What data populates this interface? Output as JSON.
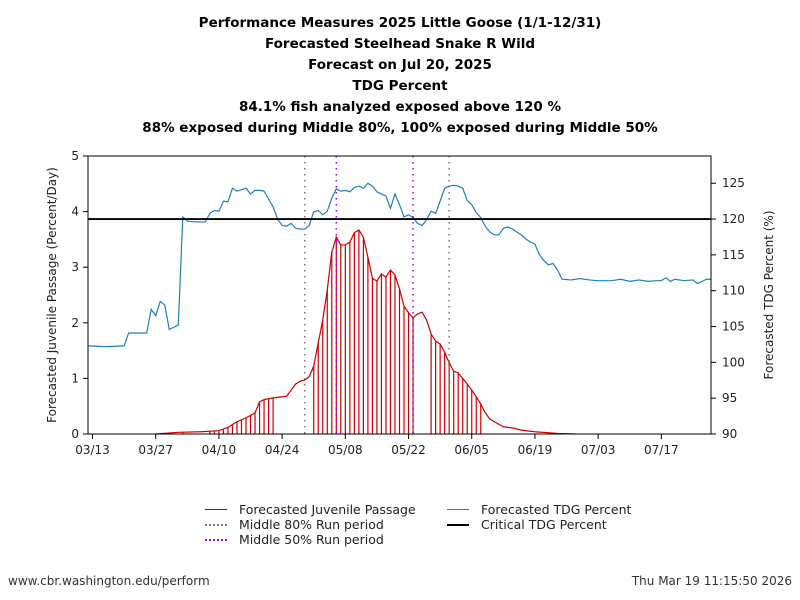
{
  "titles": [
    "Performance Measures 2025 Little Goose (1/1-12/31)",
    "Forecasted Steelhead Snake R Wild",
    "Forecast on Jul 20, 2025",
    "TDG Percent",
    "84.1% fish analyzed exposed above 120 %",
    "88% exposed during Middle 80%, 100% exposed during Middle 50%"
  ],
  "footer": {
    "left": "www.cbr.washington.edu/perform",
    "right": "Thu Mar 19 11:15:50 2026"
  },
  "legend": [
    {
      "label": "Forecasted Juvenile Passage",
      "color": "#cc0000",
      "style": "solid"
    },
    {
      "label": "Middle 80% Run period",
      "color": "#777777",
      "style": "dotted"
    },
    {
      "label": "Middle 50% Run period",
      "color": "#9900ff",
      "style": "dotted"
    },
    {
      "label": "Forecasted TDG Percent",
      "color": "#1f7fb8",
      "style": "solid"
    },
    {
      "label": "Critical TDG Percent",
      "color": "#000000",
      "style": "solid"
    }
  ],
  "chart_data": {
    "type": "line",
    "xlabel": "",
    "ylabel": "Forecasted Juvenile Passage (Percent/Day)",
    "y2label": "Forecasted TDG Percent (%)",
    "xlim": [
      "2025-03-12",
      "2025-07-28"
    ],
    "ylim": [
      0,
      5
    ],
    "y2lim": [
      90,
      128.8
    ],
    "xticks": [
      "03/13",
      "03/27",
      "04/10",
      "04/24",
      "05/08",
      "05/22",
      "06/05",
      "06/19",
      "07/03",
      "07/17"
    ],
    "yticks": [
      "0",
      "1",
      "2",
      "3",
      "4",
      "5"
    ],
    "y2ticks": [
      "90",
      "95",
      "100",
      "105",
      "110",
      "115",
      "120",
      "125"
    ],
    "grid": false,
    "legend_placement": "bottom",
    "critical_tdg": 120,
    "middle80": [
      "2025-04-29",
      "2025-05-31"
    ],
    "middle50": [
      "2025-05-06",
      "2025-05-23"
    ],
    "passage": [
      [
        "2025-03-27",
        0
      ],
      [
        "2025-04-01",
        0.03
      ],
      [
        "2025-04-06",
        0.04
      ],
      [
        "2025-04-10",
        0.06
      ],
      [
        "2025-04-12",
        0.12
      ],
      [
        "2025-04-14",
        0.22
      ],
      [
        "2025-04-16",
        0.29
      ],
      [
        "2025-04-18",
        0.38
      ],
      [
        "2025-04-19",
        0.58
      ],
      [
        "2025-04-20",
        0.62
      ],
      [
        "2025-04-22",
        0.65
      ],
      [
        "2025-04-24",
        0.67
      ],
      [
        "2025-04-25",
        0.68
      ],
      [
        "2025-04-26",
        0.79
      ],
      [
        "2025-04-27",
        0.9
      ],
      [
        "2025-04-28",
        0.95
      ],
      [
        "2025-04-29",
        0.97
      ],
      [
        "2025-04-30",
        1.03
      ],
      [
        "2025-05-01",
        1.22
      ],
      [
        "2025-05-02",
        1.64
      ],
      [
        "2025-05-03",
        2.05
      ],
      [
        "2025-05-04",
        2.59
      ],
      [
        "2025-05-05",
        3.27
      ],
      [
        "2025-05-06",
        3.54
      ],
      [
        "2025-05-07",
        3.4
      ],
      [
        "2025-05-08",
        3.4
      ],
      [
        "2025-05-09",
        3.45
      ],
      [
        "2025-05-10",
        3.62
      ],
      [
        "2025-05-11",
        3.67
      ],
      [
        "2025-05-12",
        3.54
      ],
      [
        "2025-05-13",
        3.18
      ],
      [
        "2025-05-14",
        2.8
      ],
      [
        "2025-05-15",
        2.75
      ],
      [
        "2025-05-16",
        2.88
      ],
      [
        "2025-05-17",
        2.82
      ],
      [
        "2025-05-18",
        2.95
      ],
      [
        "2025-05-19",
        2.86
      ],
      [
        "2025-05-20",
        2.61
      ],
      [
        "2025-05-21",
        2.3
      ],
      [
        "2025-05-22",
        2.18
      ],
      [
        "2025-05-23",
        2.09
      ],
      [
        "2025-05-24",
        2.16
      ],
      [
        "2025-05-25",
        2.19
      ],
      [
        "2025-05-26",
        2.05
      ],
      [
        "2025-05-27",
        1.8
      ],
      [
        "2025-05-28",
        1.67
      ],
      [
        "2025-05-29",
        1.62
      ],
      [
        "2025-05-30",
        1.47
      ],
      [
        "2025-05-31",
        1.28
      ],
      [
        "2025-06-01",
        1.13
      ],
      [
        "2025-06-02",
        1.1
      ],
      [
        "2025-06-03",
        1.0
      ],
      [
        "2025-06-04",
        0.9
      ],
      [
        "2025-06-05",
        0.79
      ],
      [
        "2025-06-06",
        0.67
      ],
      [
        "2025-06-07",
        0.54
      ],
      [
        "2025-06-08",
        0.38
      ],
      [
        "2025-06-09",
        0.27
      ],
      [
        "2025-06-10",
        0.22
      ],
      [
        "2025-06-12",
        0.13
      ],
      [
        "2025-06-14",
        0.11
      ],
      [
        "2025-06-16",
        0.07
      ],
      [
        "2025-06-19",
        0.04
      ],
      [
        "2025-06-24",
        0.01
      ],
      [
        "2025-06-28",
        0
      ]
    ],
    "tdg": [
      [
        "2025-03-12",
        102.3
      ],
      [
        "2025-03-16",
        102.2
      ],
      [
        "2025-03-20",
        102.3
      ],
      [
        "2025-03-21",
        104.1
      ],
      [
        "2025-03-25",
        104.1
      ],
      [
        "2025-03-26",
        107.4
      ],
      [
        "2025-03-27",
        106.5
      ],
      [
        "2025-03-28",
        108.5
      ],
      [
        "2025-03-29",
        108.0
      ],
      [
        "2025-03-30",
        104.6
      ],
      [
        "2025-03-31",
        104.9
      ],
      [
        "2025-04-01",
        105.2
      ],
      [
        "2025-04-02",
        120.3
      ],
      [
        "2025-04-03",
        119.7
      ],
      [
        "2025-04-05",
        119.6
      ],
      [
        "2025-04-07",
        119.6
      ],
      [
        "2025-04-08",
        120.8
      ],
      [
        "2025-04-09",
        121.2
      ],
      [
        "2025-04-10",
        121.1
      ],
      [
        "2025-04-11",
        122.5
      ],
      [
        "2025-04-12",
        122.4
      ],
      [
        "2025-04-13",
        124.3
      ],
      [
        "2025-04-14",
        123.9
      ],
      [
        "2025-04-15",
        124.1
      ],
      [
        "2025-04-16",
        124.3
      ],
      [
        "2025-04-17",
        123.5
      ],
      [
        "2025-04-18",
        124.0
      ],
      [
        "2025-04-19",
        124.0
      ],
      [
        "2025-04-20",
        123.9
      ],
      [
        "2025-04-21",
        122.8
      ],
      [
        "2025-04-22",
        121.7
      ],
      [
        "2025-04-23",
        120.0
      ],
      [
        "2025-04-24",
        119.1
      ],
      [
        "2025-04-25",
        119.0
      ],
      [
        "2025-04-26",
        119.4
      ],
      [
        "2025-04-27",
        118.7
      ],
      [
        "2025-04-28",
        118.6
      ],
      [
        "2025-04-29",
        118.6
      ],
      [
        "2025-04-30",
        119.1
      ],
      [
        "2025-05-01",
        121.0
      ],
      [
        "2025-05-02",
        121.2
      ],
      [
        "2025-05-03",
        120.6
      ],
      [
        "2025-05-04",
        121.1
      ],
      [
        "2025-05-05",
        122.9
      ],
      [
        "2025-05-06",
        124.2
      ],
      [
        "2025-05-07",
        123.9
      ],
      [
        "2025-05-08",
        124.0
      ],
      [
        "2025-05-09",
        123.8
      ],
      [
        "2025-05-10",
        124.4
      ],
      [
        "2025-05-11",
        124.6
      ],
      [
        "2025-05-12",
        124.3
      ],
      [
        "2025-05-13",
        125.0
      ],
      [
        "2025-05-14",
        124.6
      ],
      [
        "2025-05-15",
        123.8
      ],
      [
        "2025-05-16",
        123.5
      ],
      [
        "2025-05-17",
        123.2
      ],
      [
        "2025-05-18",
        121.5
      ],
      [
        "2025-05-19",
        123.5
      ],
      [
        "2025-05-20",
        122.0
      ],
      [
        "2025-05-21",
        120.3
      ],
      [
        "2025-05-22",
        120.6
      ],
      [
        "2025-05-23",
        120.2
      ],
      [
        "2025-05-24",
        119.4
      ],
      [
        "2025-05-25",
        119.1
      ],
      [
        "2025-05-26",
        119.9
      ],
      [
        "2025-05-27",
        121.1
      ],
      [
        "2025-05-28",
        120.8
      ],
      [
        "2025-05-29",
        122.5
      ],
      [
        "2025-05-30",
        124.3
      ],
      [
        "2025-05-31",
        124.6
      ],
      [
        "2025-06-01",
        124.7
      ],
      [
        "2025-06-02",
        124.6
      ],
      [
        "2025-06-03",
        124.3
      ],
      [
        "2025-06-04",
        122.6
      ],
      [
        "2025-06-05",
        122.0
      ],
      [
        "2025-06-06",
        120.9
      ],
      [
        "2025-06-07",
        120.2
      ],
      [
        "2025-06-08",
        119.0
      ],
      [
        "2025-06-09",
        118.2
      ],
      [
        "2025-06-10",
        117.8
      ],
      [
        "2025-06-11",
        117.8
      ],
      [
        "2025-06-12",
        118.7
      ],
      [
        "2025-06-13",
        118.9
      ],
      [
        "2025-06-14",
        118.6
      ],
      [
        "2025-06-15",
        118.2
      ],
      [
        "2025-06-16",
        117.8
      ],
      [
        "2025-06-17",
        117.2
      ],
      [
        "2025-06-18",
        116.8
      ],
      [
        "2025-06-19",
        116.5
      ],
      [
        "2025-06-20",
        115.0
      ],
      [
        "2025-06-21",
        114.2
      ],
      [
        "2025-06-22",
        113.6
      ],
      [
        "2025-06-23",
        113.8
      ],
      [
        "2025-06-24",
        112.9
      ],
      [
        "2025-06-25",
        111.6
      ],
      [
        "2025-06-27",
        111.5
      ],
      [
        "2025-06-29",
        111.7
      ],
      [
        "2025-07-01",
        111.5
      ],
      [
        "2025-07-03",
        111.4
      ],
      [
        "2025-07-06",
        111.4
      ],
      [
        "2025-07-08",
        111.6
      ],
      [
        "2025-07-10",
        111.3
      ],
      [
        "2025-07-12",
        111.5
      ],
      [
        "2025-07-14",
        111.3
      ],
      [
        "2025-07-16",
        111.4
      ],
      [
        "2025-07-17",
        111.4
      ],
      [
        "2025-07-18",
        111.8
      ],
      [
        "2025-07-19",
        111.3
      ],
      [
        "2025-07-20",
        111.6
      ],
      [
        "2025-07-22",
        111.4
      ],
      [
        "2025-07-24",
        111.5
      ],
      [
        "2025-07-25",
        111.0
      ],
      [
        "2025-07-27",
        111.6
      ],
      [
        "2025-07-28",
        111.6
      ]
    ]
  }
}
